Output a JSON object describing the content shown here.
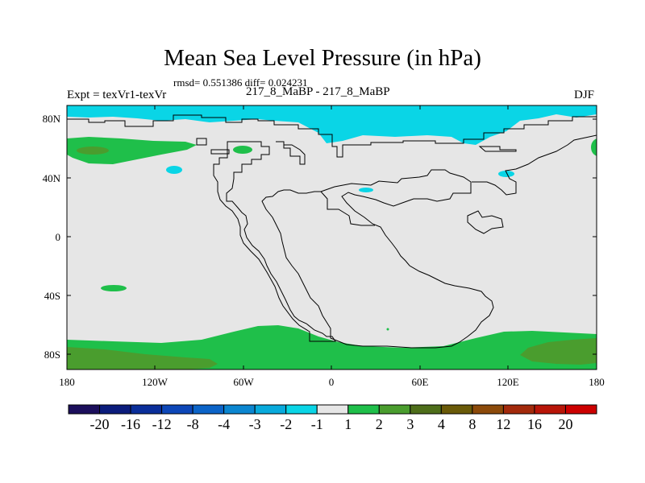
{
  "title": "Mean Sea Level Pressure (in hPa)",
  "stats": "rmsd= 0.551386 diff= 0.024231",
  "experiment": "Expt = texVr1-texVr",
  "subtitle": "217_8_MaBP - 217_8_MaBP",
  "season": "DJF",
  "lat_labels": [
    "80N",
    "40N",
    "0",
    "40S",
    "80S"
  ],
  "lon_labels": [
    "180",
    "120W",
    "60W",
    "0",
    "60E",
    "120E",
    "180"
  ],
  "colorbar": {
    "labels": [
      "-20",
      "-16",
      "-12",
      "-8",
      "-4",
      "-3",
      "-2",
      "-1",
      "1",
      "2",
      "3",
      "4",
      "8",
      "12",
      "16",
      "20"
    ],
    "colors": [
      "#1c0f5c",
      "#0b1c7c",
      "#0a2e9a",
      "#0d47b8",
      "#0c64c8",
      "#0b86d0",
      "#08aadc",
      "#0ad5e6",
      "#e6e6e6",
      "#1fbf4a",
      "#4a9d2e",
      "#4e6e1a",
      "#6a5a08",
      "#8c4a0a",
      "#a32a0c",
      "#b81508",
      "#cc0000"
    ]
  },
  "chart_data": {
    "type": "heatmap",
    "title": "Mean Sea Level Pressure (in hPa)",
    "units": "hPa",
    "x_range": [
      -180,
      180
    ],
    "y_range": [
      -90,
      90
    ],
    "x_ticks": [
      "180",
      "120W",
      "60W",
      "0",
      "60E",
      "120E",
      "180"
    ],
    "y_ticks": [
      "80N",
      "40N",
      "0",
      "40S",
      "80S"
    ],
    "levels": [
      -20,
      -16,
      -12,
      -8,
      -4,
      -3,
      -2,
      -1,
      1,
      2,
      3,
      4,
      8,
      12,
      16,
      20
    ],
    "background_level_range": [
      -1,
      1
    ],
    "regions": [
      {
        "name": "arctic-low",
        "range": "-2 to -1",
        "approx_lon": [
          -180,
          180
        ],
        "approx_lat": [
          62,
          90
        ]
      },
      {
        "name": "north-pacific-high",
        "range": "2 to 3",
        "approx_lon": [
          -180,
          -95
        ],
        "approx_lat": [
          55,
          68
        ]
      },
      {
        "name": "north-pacific-core",
        "range": "3 to 4",
        "approx_lon": [
          -170,
          -150
        ],
        "approx_lat": [
          57,
          62
        ]
      },
      {
        "name": "north-america-high",
        "range": "2 to 3",
        "approx_lon": [
          -73,
          -60
        ],
        "approx_lat": [
          57,
          62
        ]
      },
      {
        "name": "mid-pacific-low",
        "range": "-2 to -1",
        "approx_lon": [
          -108,
          -100
        ],
        "approx_lat": [
          42,
          46
        ]
      },
      {
        "name": "equatorial-africa-low",
        "range": "-2 to -1",
        "approx_lon": [
          19,
          31
        ],
        "approx_lat": [
          28,
          32
        ]
      },
      {
        "name": "east-asia-low",
        "range": "-2 to -1",
        "approx_lon": [
          112,
          124
        ],
        "approx_lat": [
          41,
          45
        ]
      },
      {
        "name": "south-pacific-high",
        "range": "2 to 3",
        "approx_lon": [
          -155,
          -137
        ],
        "approx_lat": [
          -37,
          -33
        ]
      },
      {
        "name": "southern-ocean-high",
        "range": "2 to 3",
        "approx_lon": [
          -180,
          180
        ],
        "approx_lat": [
          -90,
          -62
        ]
      },
      {
        "name": "southern-ocean-core",
        "range": "3 to 4",
        "approx_lon": [
          -180,
          -90
        ],
        "approx_lat": [
          -86,
          -78
        ]
      },
      {
        "name": "southern-ocean-core-east",
        "range": "3 to 4",
        "approx_lon": [
          130,
          180
        ],
        "approx_lat": [
          -88,
          -72
        ]
      }
    ]
  }
}
